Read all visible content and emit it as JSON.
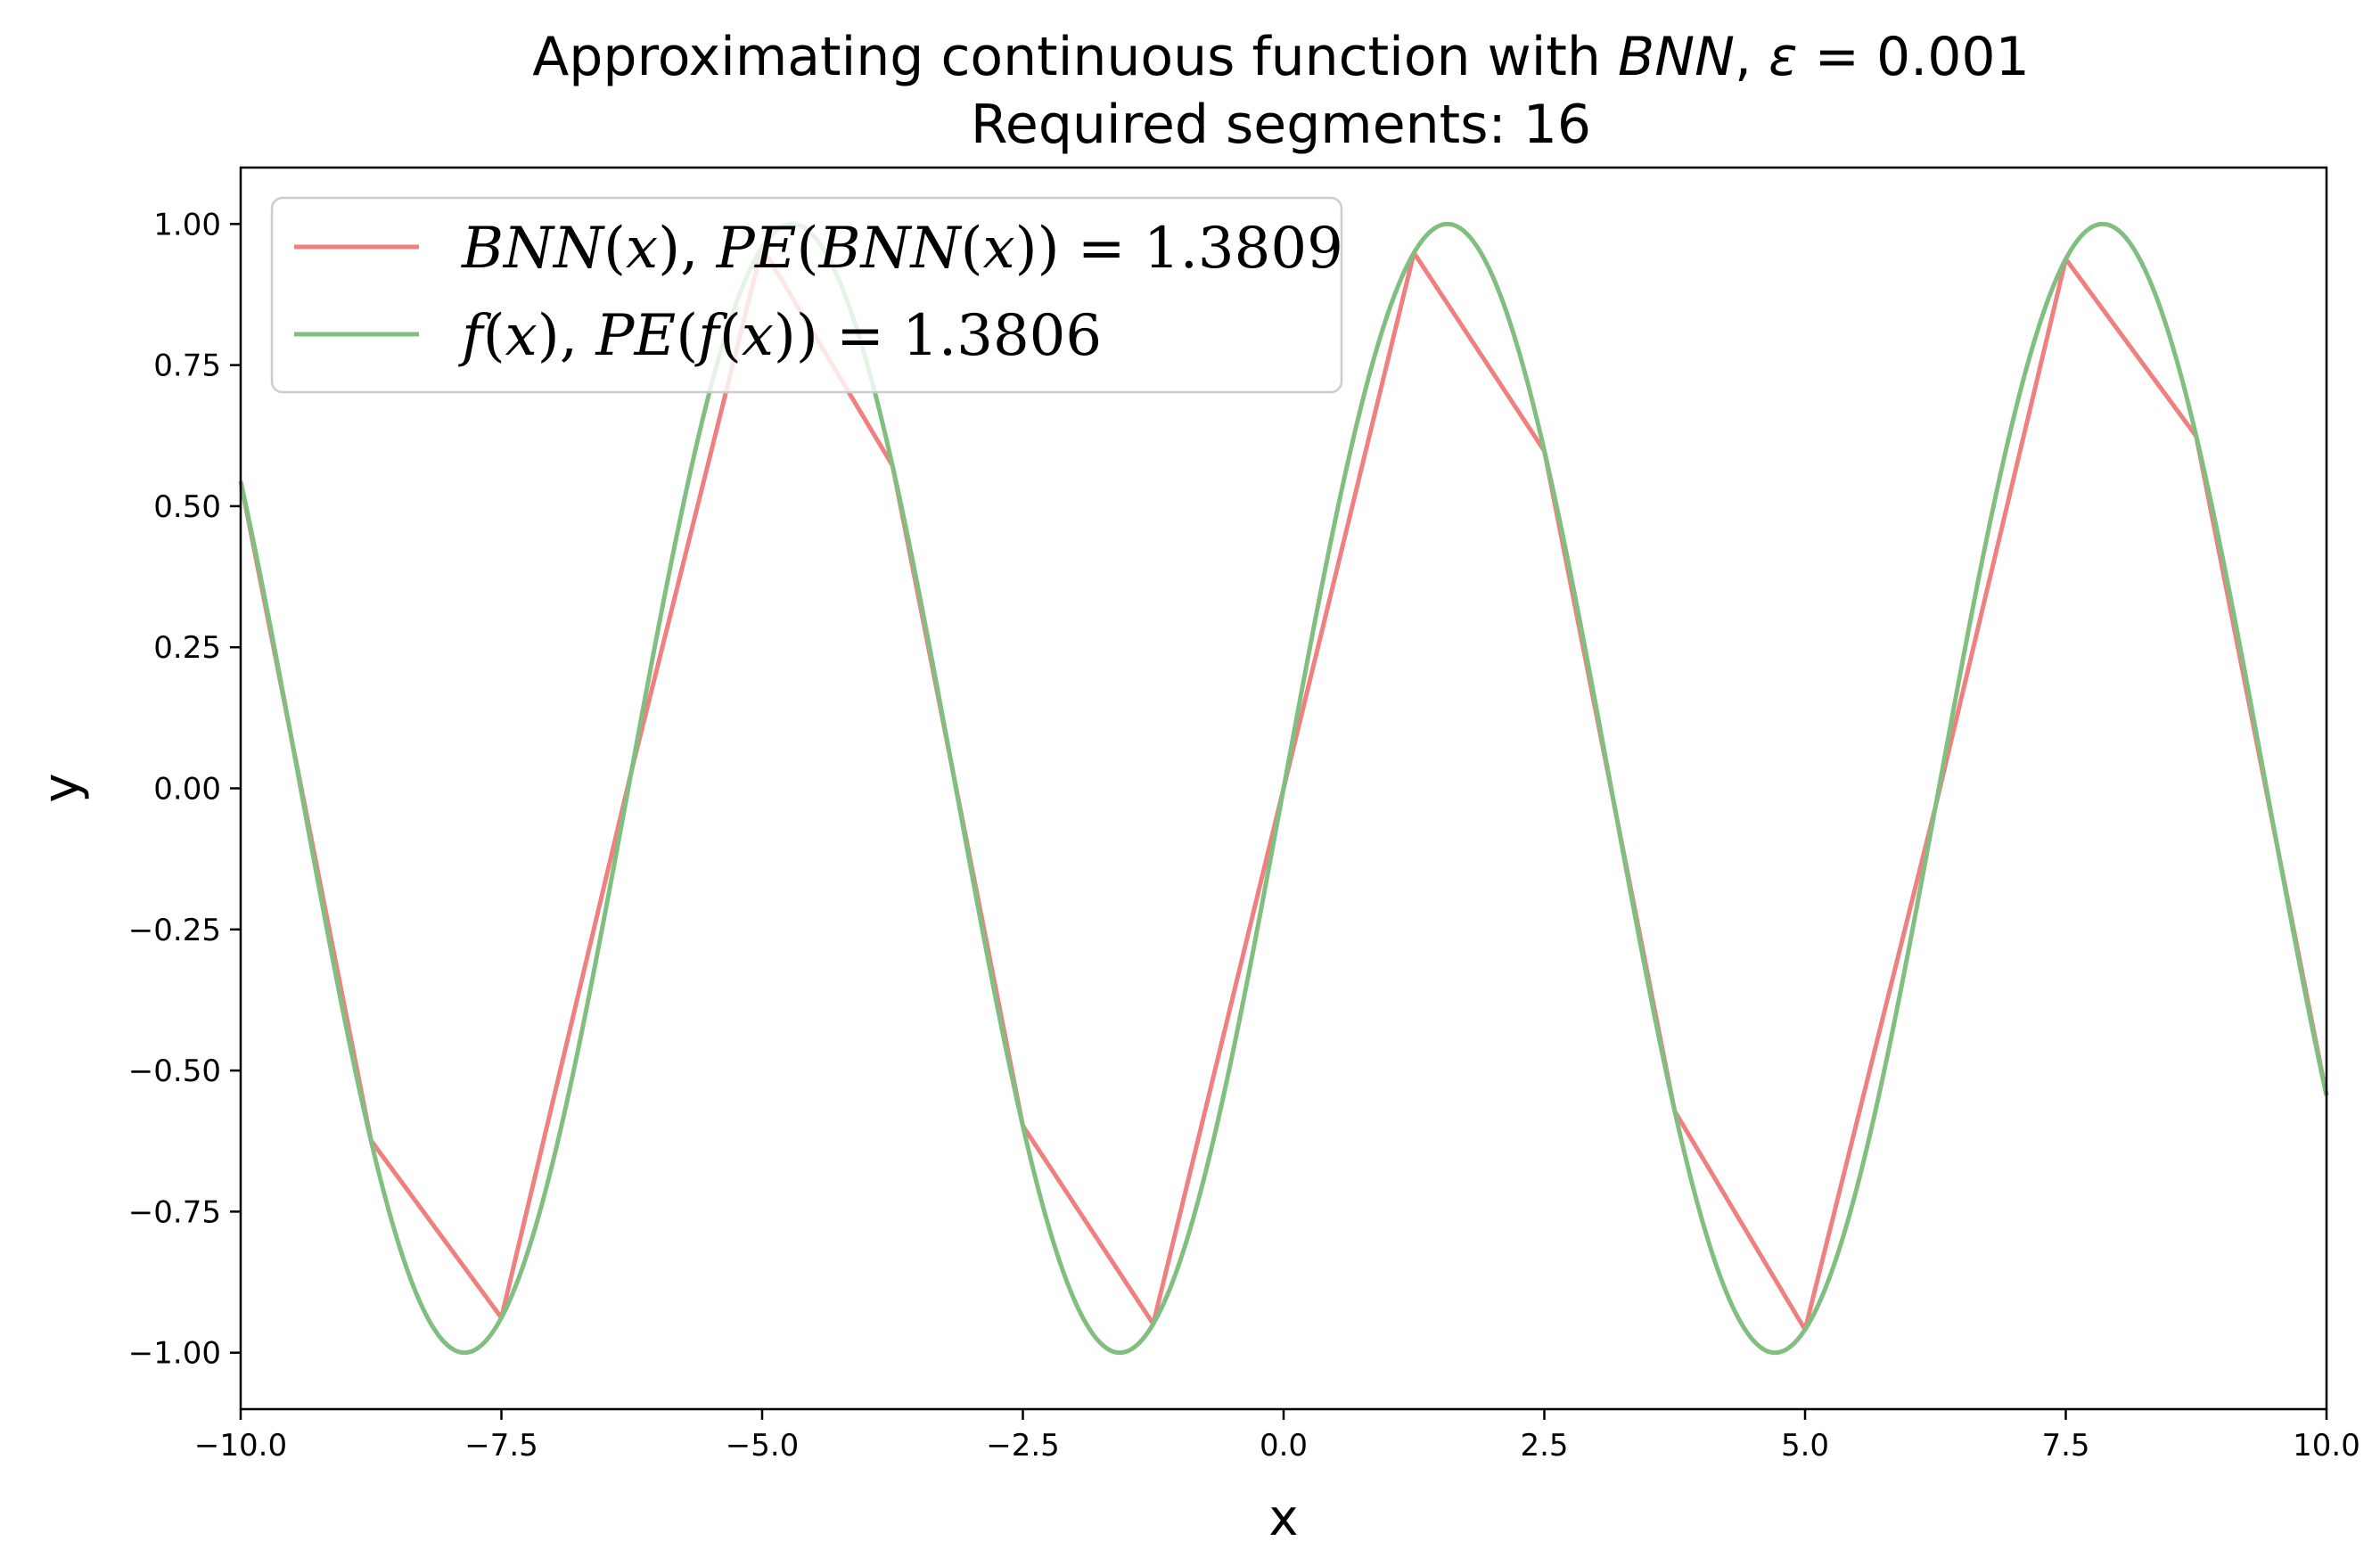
{
  "chart_data": {
    "type": "line",
    "title": {
      "line1_prefix": "Approximating continuous function with ",
      "line1_model": "BNN",
      "line1_sep": ", ",
      "line1_eps": "ε",
      "line1_value": " = 0.001",
      "line2": "Required segments: 16"
    },
    "xlabel": "x",
    "ylabel": "y",
    "xlim": [
      -10,
      10
    ],
    "ylim": [
      -1.1,
      1.1
    ],
    "x_ticks": [
      -10,
      -7.5,
      -5,
      -2.5,
      0,
      2.5,
      5,
      7.5,
      10
    ],
    "x_tick_labels": [
      "−10.0",
      "−7.5",
      "−5.0",
      "−2.5",
      "0.0",
      "2.5",
      "5.0",
      "7.5",
      "10.0"
    ],
    "y_ticks": [
      1,
      0.75,
      0.5,
      0.25,
      0,
      -0.25,
      -0.5,
      -0.75,
      -1
    ],
    "y_tick_labels": [
      "1.00",
      "0.75",
      "0.50",
      "0.25",
      "0.00",
      "−0.25",
      "−0.50",
      "−0.75",
      "−1.00"
    ],
    "grid": false,
    "legend_position": "top-left",
    "series": [
      {
        "name": "BNN(x), PE(BNN(x)) = 1.3809",
        "color": "#f08080",
        "x": [
          -10,
          -8.75,
          -7.5,
          -6.25,
          -5,
          -3.75,
          -2.5,
          -1.25,
          0,
          1.25,
          2.5,
          3.75,
          5,
          6.25,
          7.5,
          8.75,
          10
        ],
        "y": [
          0.544,
          -0.624,
          -0.938,
          0.033,
          0.959,
          0.572,
          -0.598,
          -0.949,
          0,
          0.949,
          0.598,
          -0.572,
          -0.959,
          -0.033,
          0.938,
          0.624,
          -0.544
        ]
      },
      {
        "name": "f(x), PE(f(x)) = 1.3806",
        "color": "#80bf80",
        "function": "sin",
        "x_range": [
          -10,
          10
        ]
      }
    ]
  },
  "legend": {
    "bnn_text_a": "BNN",
    "bnn_text_b": "(",
    "bnn_text_c": "x",
    "bnn_text_d": "), ",
    "bnn_text_e": "PE",
    "bnn_text_f": "(",
    "bnn_text_g": "BNN",
    "bnn_text_h": "(",
    "bnn_text_i": "x",
    "bnn_text_j": ")) = 1.3809",
    "f_text_a": "f",
    "f_text_b": "(",
    "f_text_c": "x",
    "f_text_d": "), ",
    "f_text_e": "PE",
    "f_text_f": "(",
    "f_text_g": "f",
    "f_text_h": "(",
    "f_text_i": "x",
    "f_text_j": ")) = 1.3806"
  }
}
